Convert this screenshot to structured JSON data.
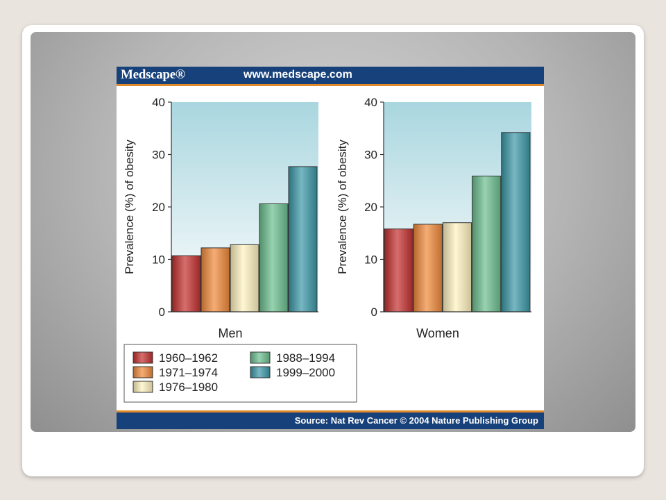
{
  "header": {
    "brand": "Medscape®",
    "url": "www.medscape.com"
  },
  "footer": {
    "source": "Source: Nat Rev Cancer © 2004 Nature Publishing Group"
  },
  "chart_data": {
    "type": "bar",
    "ylabel": "Prevalence (%) of obesity",
    "ylim": [
      0,
      40
    ],
    "yticks": [
      0,
      10,
      20,
      30,
      40
    ],
    "grid": false,
    "legend_position": "bottom-left",
    "panels": [
      {
        "label": "Men",
        "values": [
          10.7,
          12.2,
          12.8,
          20.6,
          27.7
        ]
      },
      {
        "label": "Women",
        "values": [
          15.8,
          16.7,
          17.0,
          25.9,
          34.2
        ]
      }
    ],
    "series": [
      {
        "name": "1960–1962",
        "color": "#c4302f"
      },
      {
        "name": "1971–1974",
        "color": "#f08a3a"
      },
      {
        "name": "1976–1980",
        "color": "#fff3bf"
      },
      {
        "name": "1988–1994",
        "color": "#6cbf8e"
      },
      {
        "name": "1999–2000",
        "color": "#3b98a8"
      }
    ]
  }
}
